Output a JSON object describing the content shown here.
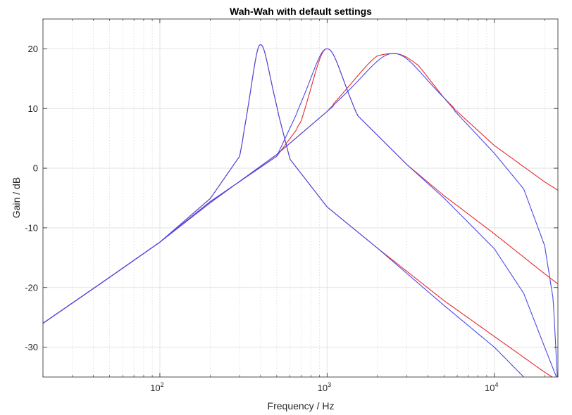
{
  "chart_data": {
    "type": "line",
    "title": "Wah-Wah with default settings",
    "xlabel": "Frequency / Hz",
    "ylabel": "Gain / dB",
    "xscale": "log",
    "xlim": [
      20,
      24000
    ],
    "ylim": [
      -35,
      25
    ],
    "grid": true,
    "legend": "none",
    "xticks": [
      {
        "base": "10",
        "exp": "2",
        "value": 100
      },
      {
        "base": "10",
        "exp": "3",
        "value": 1000
      },
      {
        "base": "10",
        "exp": "4",
        "value": 10000
      }
    ],
    "yticks": [
      {
        "label": "20",
        "value": 20
      },
      {
        "label": "10",
        "value": 10
      },
      {
        "label": "0",
        "value": 0
      },
      {
        "label": "-10",
        "value": -10
      },
      {
        "label": "-20",
        "value": -20
      },
      {
        "label": "-30",
        "value": -30
      }
    ],
    "series": [
      {
        "color": "#e8292d",
        "kind": "analog",
        "fc": 400,
        "peak_db": 20.7,
        "x": [
          20,
          50,
          100,
          200,
          300,
          400,
          600,
          1000,
          2000,
          5000,
          10000,
          20000,
          24000
        ],
        "y": [
          -26,
          -18.3,
          -12.4,
          -5.1,
          2,
          20.7,
          1.5,
          -6.5,
          -13.4,
          -22.2,
          -28.2,
          -34.2,
          -35.6
        ]
      },
      {
        "color": "#e8292d",
        "kind": "analog",
        "fc": 1000,
        "peak_db": 20.0,
        "x": [
          20,
          50,
          100,
          200,
          500,
          700,
          1000,
          1500,
          3000,
          5000,
          10000,
          20000,
          24000
        ],
        "y": [
          -26,
          -18.3,
          -12.4,
          -5.6,
          2,
          7.5,
          20,
          9,
          0.6,
          -4.6,
          -11,
          -17.7,
          -19.4
        ]
      },
      {
        "color": "#e8292d",
        "kind": "analog",
        "fc": 2500,
        "peak_db": 19.2,
        "x": [
          20,
          50,
          100,
          200,
          500,
          1000,
          2000,
          2500,
          3500,
          5000,
          10000,
          20000,
          24000
        ],
        "y": [
          -26,
          -18.3,
          -12.4,
          -5.8,
          2.3,
          9.5,
          18.5,
          19.2,
          16.5,
          11.5,
          3.8,
          -2.3,
          -3.7
        ]
      },
      {
        "color": "#4a4ae6",
        "kind": "digital",
        "fc": 400,
        "peak_db": 20.7,
        "x": [
          20,
          50,
          100,
          200,
          300,
          400,
          600,
          1000,
          2000,
          5000,
          10000,
          15000
        ],
        "y": [
          -26,
          -18.3,
          -12.4,
          -5.1,
          2,
          20.7,
          1.5,
          -6.5,
          -13.4,
          -23,
          -30,
          -35
        ]
      },
      {
        "color": "#4a4ae6",
        "kind": "digital",
        "fc": 1000,
        "peak_db": 20.0,
        "x": [
          20,
          50,
          100,
          200,
          500,
          1000,
          1500,
          3000,
          5000,
          10000,
          15000,
          20000,
          23500
        ],
        "y": [
          -26,
          -18.3,
          -12.4,
          -5.6,
          2,
          20,
          9,
          0.6,
          -5,
          -13.5,
          -21,
          -30,
          -35
        ]
      },
      {
        "color": "#4a4ae6",
        "kind": "digital",
        "fc": 2500,
        "peak_db": 19.2,
        "x": [
          20,
          50,
          100,
          200,
          500,
          1000,
          2500,
          5000,
          10000,
          15000,
          20000,
          22500,
          23800
        ],
        "y": [
          -26,
          -18.3,
          -12.4,
          -5.8,
          2.3,
          9.5,
          19.2,
          11.5,
          2.5,
          -3.5,
          -13,
          -22,
          -35
        ]
      }
    ]
  }
}
